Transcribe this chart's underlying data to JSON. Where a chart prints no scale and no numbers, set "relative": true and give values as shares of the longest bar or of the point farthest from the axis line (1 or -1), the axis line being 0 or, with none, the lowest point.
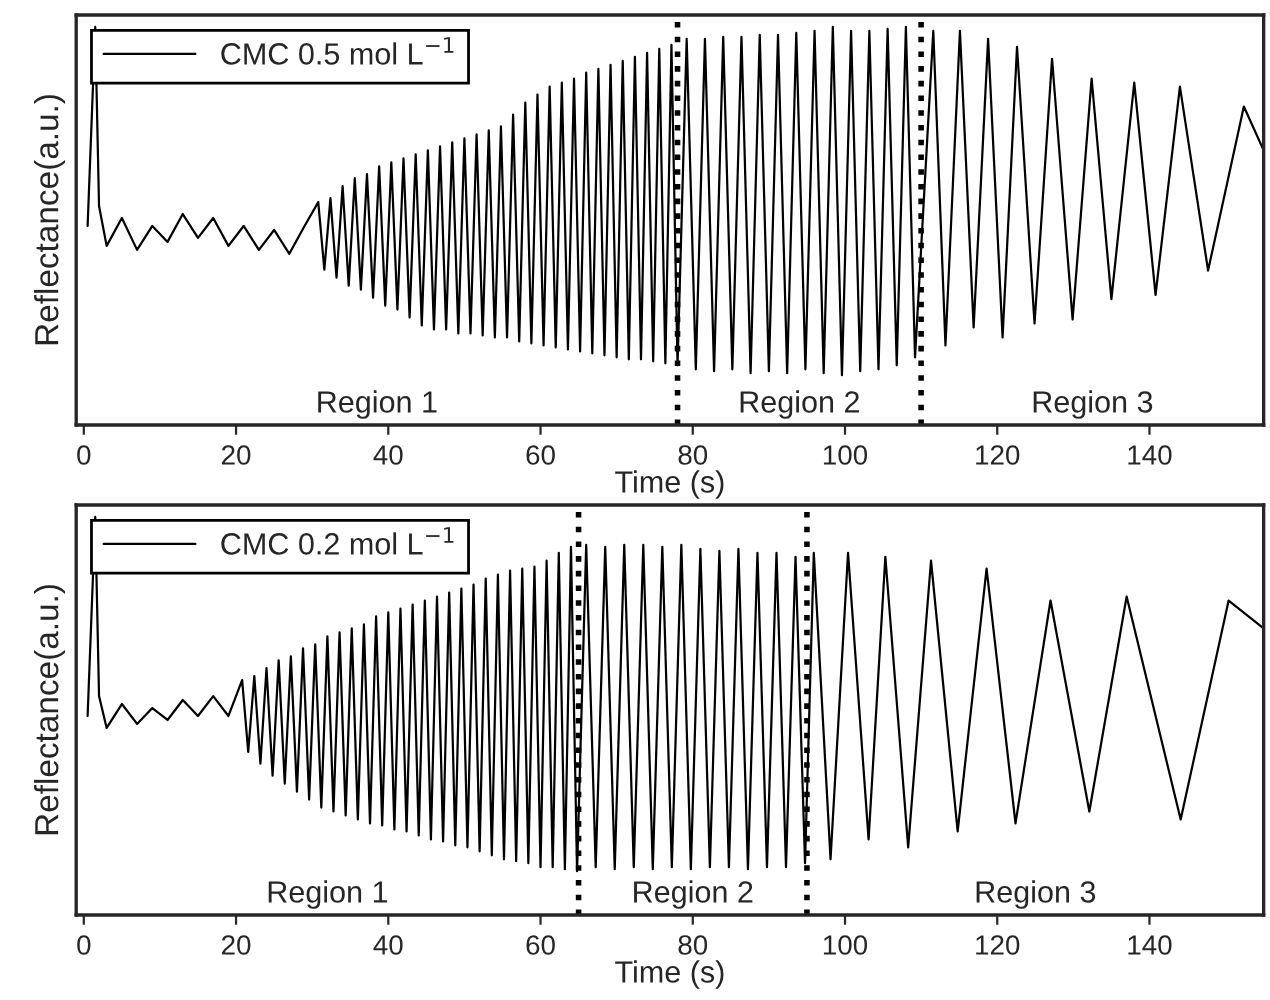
{
  "chart_data": [
    {
      "type": "line",
      "relative": true,
      "xlabel": "Time (s)",
      "ylabel": "Reflectance(a.u.)",
      "legend": "top left",
      "tick_labels": "x",
      "xlim": [
        -1,
        155
      ],
      "xticks": [
        0,
        20,
        40,
        60,
        80,
        100,
        120,
        140
      ],
      "series": [
        {
          "name": "CMC 0.5 mol L$^{−1}$",
          "color": "#000000",
          "x": [
            0.5,
            1.5,
            2,
            3,
            5,
            7,
            9,
            11,
            13,
            15,
            17,
            19,
            21,
            23,
            25,
            27,
            29,
            30.8,
            31.6,
            32.4,
            33.2,
            34.0,
            34.8,
            35.6,
            36.4,
            37.2,
            38.0,
            38.8,
            39.6,
            40.4,
            41.2,
            42.0,
            42.8,
            43.6,
            44.4,
            45.2,
            46.0,
            46.8,
            47.6,
            48.4,
            49.2,
            50.0,
            50.8,
            51.6,
            52.4,
            53.2,
            54.0,
            54.8,
            55.6,
            56.4,
            57.2,
            58.0,
            58.8,
            59.6,
            60.4,
            61.2,
            62.0,
            62.8,
            63.6,
            64.4,
            65.2,
            66.0,
            66.8,
            67.6,
            68.4,
            69.2,
            70.0,
            70.8,
            71.6,
            72.4,
            73.2,
            74.0,
            74.8,
            75.6,
            76.4,
            77.2,
            78.0,
            79.2,
            80.4,
            81.6,
            82.8,
            84.0,
            85.2,
            86.4,
            87.6,
            88.8,
            90.0,
            91.2,
            92.4,
            93.6,
            94.8,
            96.0,
            97.2,
            98.4,
            99.6,
            100.8,
            102.0,
            103.2,
            104.4,
            105.6,
            106.8,
            108.0,
            109.2,
            111.6,
            113.2,
            115.1,
            116.9,
            118.8,
            120.7,
            122.6,
            124.9,
            127.2,
            129.9,
            132.4,
            135.0,
            138.0,
            140.8,
            144.0,
            147.7,
            152.4,
            155
          ],
          "values": [
            0.5,
            1.0,
            0.55,
            0.45,
            0.52,
            0.44,
            0.5,
            0.46,
            0.53,
            0.47,
            0.52,
            0.45,
            0.5,
            0.44,
            0.49,
            0.43,
            0.5,
            0.56,
            0.39,
            0.57,
            0.37,
            0.6,
            0.35,
            0.62,
            0.34,
            0.63,
            0.32,
            0.65,
            0.3,
            0.66,
            0.29,
            0.67,
            0.27,
            0.68,
            0.25,
            0.69,
            0.24,
            0.7,
            0.24,
            0.71,
            0.23,
            0.72,
            0.23,
            0.73,
            0.225,
            0.74,
            0.22,
            0.75,
            0.22,
            0.78,
            0.21,
            0.81,
            0.205,
            0.83,
            0.2,
            0.85,
            0.195,
            0.86,
            0.19,
            0.87,
            0.185,
            0.885,
            0.18,
            0.895,
            0.175,
            0.905,
            0.17,
            0.915,
            0.165,
            0.925,
            0.165,
            0.935,
            0.16,
            0.945,
            0.155,
            0.955,
            0.15,
            0.97,
            0.14,
            0.97,
            0.135,
            0.975,
            0.14,
            0.975,
            0.13,
            0.98,
            0.135,
            0.98,
            0.13,
            0.985,
            0.14,
            0.99,
            0.13,
            1.0,
            0.125,
            0.99,
            0.135,
            0.99,
            0.14,
            0.995,
            0.15,
            1.0,
            0.17,
            0.99,
            0.2,
            0.99,
            0.245,
            0.97,
            0.22,
            0.95,
            0.255,
            0.92,
            0.265,
            0.87,
            0.316,
            0.86,
            0.327,
            0.85,
            0.388,
            0.8,
            0.69
          ]
        }
      ],
      "ref_lines": [
        {
          "axis": "x",
          "value": 78,
          "line_style": "dotted"
        },
        {
          "axis": "x",
          "value": 110,
          "line_style": "dotted"
        }
      ],
      "annotations": [
        "Region 1",
        "Region 2",
        "Region 3"
      ]
    },
    {
      "type": "line",
      "relative": true,
      "xlabel": "Time (s)",
      "ylabel": "Reflectance(a.u.)",
      "legend": "top left",
      "tick_labels": "x",
      "xlim": [
        -1,
        155
      ],
      "xticks": [
        0,
        20,
        40,
        60,
        80,
        100,
        120,
        140
      ],
      "series": [
        {
          "name": "CMC 0.2 mol L$^{−1}$",
          "color": "#000000",
          "x": [
            0.5,
            1.5,
            2,
            3,
            5,
            7,
            9,
            11,
            13,
            15,
            17,
            19,
            20.8,
            21.6,
            22.4,
            23.2,
            24.0,
            24.8,
            25.6,
            26.4,
            27.2,
            28.0,
            28.8,
            29.6,
            30.4,
            31.2,
            32.0,
            32.8,
            33.6,
            34.4,
            35.2,
            36.0,
            36.8,
            37.6,
            38.4,
            39.2,
            40.0,
            40.8,
            41.6,
            42.4,
            43.2,
            44.0,
            44.8,
            45.6,
            46.4,
            47.2,
            48.0,
            48.8,
            49.6,
            50.4,
            51.2,
            52.0,
            52.8,
            53.6,
            54.4,
            55.2,
            56.0,
            56.8,
            57.6,
            58.4,
            59.2,
            60.0,
            60.8,
            61.6,
            62.4,
            63.2,
            64.0,
            64.8,
            66.0,
            67.25,
            68.5,
            69.75,
            71.0,
            72.25,
            73.5,
            74.75,
            76.0,
            77.25,
            78.5,
            79.75,
            81.0,
            82.25,
            83.5,
            84.75,
            86.0,
            87.25,
            88.5,
            89.75,
            91.0,
            92.25,
            93.5,
            94.75,
            95.9,
            98.1,
            100.4,
            103.1,
            105.3,
            108.3,
            111.3,
            114.8,
            118.6,
            122.4,
            127.0,
            132.1,
            137.0,
            144.1,
            150.4,
            155
          ],
          "values": [
            0.5,
            1.0,
            0.55,
            0.47,
            0.53,
            0.48,
            0.52,
            0.49,
            0.54,
            0.5,
            0.55,
            0.5,
            0.59,
            0.41,
            0.6,
            0.38,
            0.62,
            0.35,
            0.64,
            0.33,
            0.65,
            0.31,
            0.67,
            0.29,
            0.68,
            0.27,
            0.7,
            0.26,
            0.71,
            0.25,
            0.72,
            0.24,
            0.73,
            0.23,
            0.75,
            0.225,
            0.76,
            0.215,
            0.77,
            0.21,
            0.78,
            0.2,
            0.79,
            0.19,
            0.8,
            0.185,
            0.81,
            0.175,
            0.82,
            0.17,
            0.83,
            0.16,
            0.845,
            0.15,
            0.855,
            0.14,
            0.865,
            0.135,
            0.87,
            0.13,
            0.875,
            0.12,
            0.89,
            0.12,
            0.91,
            0.115,
            0.925,
            0.11,
            0.93,
            0.12,
            0.925,
            0.115,
            0.93,
            0.12,
            0.93,
            0.115,
            0.925,
            0.12,
            0.93,
            0.115,
            0.92,
            0.12,
            0.915,
            0.12,
            0.92,
            0.115,
            0.91,
            0.12,
            0.91,
            0.12,
            0.9,
            0.13,
            0.91,
            0.14,
            0.91,
            0.19,
            0.9,
            0.17,
            0.89,
            0.21,
            0.87,
            0.23,
            0.79,
            0.26,
            0.8,
            0.24,
            0.79,
            0.72
          ]
        }
      ],
      "ref_lines": [
        {
          "axis": "x",
          "value": 65,
          "line_style": "dotted"
        },
        {
          "axis": "x",
          "value": 95,
          "line_style": "dotted"
        }
      ],
      "annotations": [
        "Region 1",
        "Region 2",
        "Region 3"
      ]
    }
  ]
}
